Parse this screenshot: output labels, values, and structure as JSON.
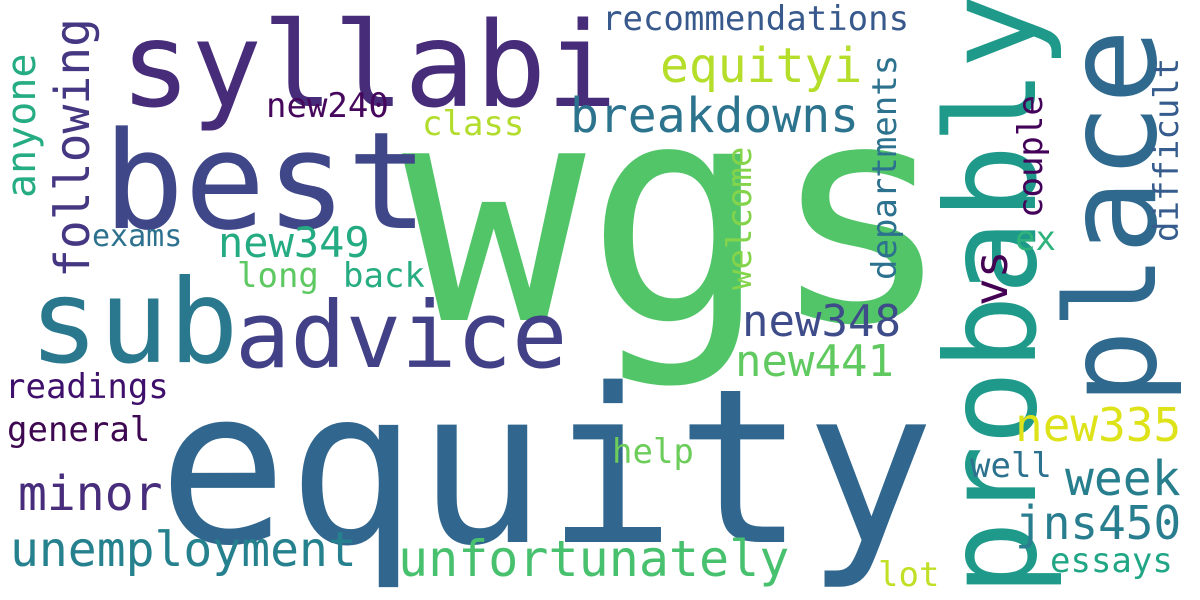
{
  "words": [
    {
      "text": "wgs",
      "color": "#52c569"
    },
    {
      "text": "equity",
      "color": "#31678e"
    },
    {
      "text": "syllabi",
      "color": "#472c7a"
    },
    {
      "text": "best",
      "color": "#3f4788"
    },
    {
      "text": "probably",
      "color": "#1f9a8a"
    },
    {
      "text": "place",
      "color": "#30698e"
    },
    {
      "text": "sub",
      "color": "#2a788e"
    },
    {
      "text": "advice",
      "color": "#424086"
    },
    {
      "text": "breakdowns",
      "color": "#2c738e"
    },
    {
      "text": "recommendations",
      "color": "#38598c"
    },
    {
      "text": "equityi",
      "color": "#b5de2b"
    },
    {
      "text": "new240",
      "color": "#46085c"
    },
    {
      "text": "class",
      "color": "#b2dd2d"
    },
    {
      "text": "anyone",
      "color": "#25ac82"
    },
    {
      "text": "following",
      "color": "#453781"
    },
    {
      "text": "exams",
      "color": "#2d718e"
    },
    {
      "text": "new349",
      "color": "#25ab82"
    },
    {
      "text": "long",
      "color": "#5ec962"
    },
    {
      "text": "back",
      "color": "#27ad81"
    },
    {
      "text": "new348",
      "color": "#3e4c8a"
    },
    {
      "text": "new441",
      "color": "#60ca60"
    },
    {
      "text": "readings",
      "color": "#3f0f6c"
    },
    {
      "text": "general",
      "color": "#3e0751"
    },
    {
      "text": "minor",
      "color": "#472d7b"
    },
    {
      "text": "unemployment",
      "color": "#26818e"
    },
    {
      "text": "unfortunately",
      "color": "#48c16e"
    },
    {
      "text": "help",
      "color": "#6ccd5a"
    },
    {
      "text": "new335",
      "color": "#dde318"
    },
    {
      "text": "well",
      "color": "#2c718e"
    },
    {
      "text": "week",
      "color": "#277f8e"
    },
    {
      "text": "jns450",
      "color": "#287d8e"
    },
    {
      "text": "lot",
      "color": "#c0df25"
    },
    {
      "text": "essays",
      "color": "#21a685"
    },
    {
      "text": "departments",
      "color": "#2c718e"
    },
    {
      "text": "couple",
      "color": "#44015a"
    },
    {
      "text": "difficult",
      "color": "#365c8d"
    },
    {
      "text": "vs",
      "color": "#440154"
    },
    {
      "text": "ex",
      "color": "#2eb37c"
    },
    {
      "text": "welcome",
      "color": "#84d44b"
    }
  ]
}
